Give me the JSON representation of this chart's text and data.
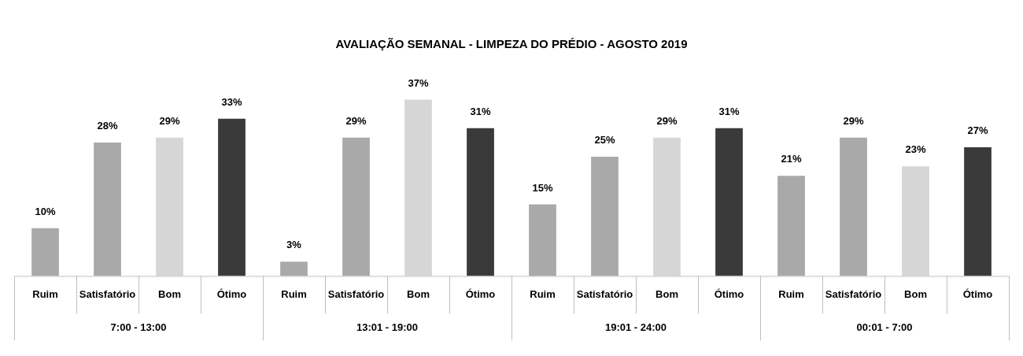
{
  "chart_data": {
    "type": "bar",
    "title": "AVALIAÇÃO SEMANAL - LIMPEZA DO PRÉDIO - AGOSTO 2019",
    "categories": [
      "Ruim",
      "Satisfatório",
      "Bom",
      "Ótimo",
      "Ruim",
      "Satisfatório",
      "Bom",
      "Ótimo",
      "Ruim",
      "Satisfatório",
      "Bom",
      "Ótimo",
      "Ruim",
      "Satisfatório",
      "Bom",
      "Ótimo"
    ],
    "values": [
      10,
      28,
      29,
      33,
      3,
      29,
      37,
      31,
      15,
      25,
      29,
      31,
      21,
      29,
      23,
      27
    ],
    "value_labels": [
      "10%",
      "28%",
      "29%",
      "33%",
      "3%",
      "29%",
      "37%",
      "31%",
      "15%",
      "25%",
      "29%",
      "31%",
      "21%",
      "29%",
      "23%",
      "27%"
    ],
    "colors": [
      "#a9a9a9",
      "#a9a9a9",
      "#d6d6d6",
      "#3a3a3a",
      "#a9a9a9",
      "#a9a9a9",
      "#d6d6d6",
      "#3a3a3a",
      "#a9a9a9",
      "#a9a9a9",
      "#d6d6d6",
      "#3a3a3a",
      "#a9a9a9",
      "#a9a9a9",
      "#d6d6d6",
      "#3a3a3a"
    ],
    "annotations": [
      "7:00 - 13:00",
      "13:01 - 19:00",
      "19:01 - 24:00",
      "00:01 - 7:00"
    ],
    "grid": false,
    "legend": false
  }
}
